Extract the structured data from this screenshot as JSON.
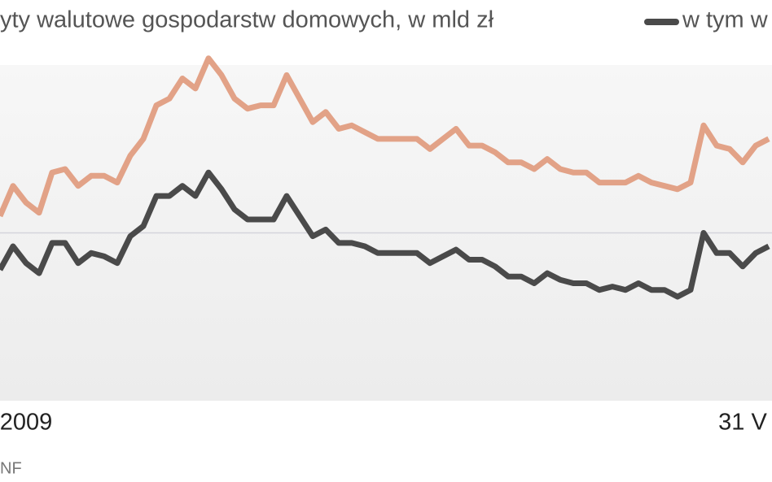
{
  "chart_data": {
    "type": "line",
    "categories": [
      null,
      null,
      "2009",
      null,
      null,
      null,
      null,
      null,
      null,
      null,
      null,
      null,
      null,
      null,
      null,
      null,
      null,
      null,
      null,
      null,
      null,
      null,
      null,
      null,
      null,
      null,
      null,
      null,
      null,
      null,
      null,
      null,
      null,
      null,
      null,
      null,
      null,
      null,
      null,
      null,
      null,
      null,
      null,
      null,
      null,
      null,
      null,
      null,
      null,
      null,
      null,
      null,
      null,
      null,
      null,
      null,
      null,
      "31 V",
      null,
      null
    ],
    "series": [
      {
        "name": "yty walutowe gospodarstw domowych, w mld zł",
        "color": "#e2a287",
        "values": [
          55,
          64,
          59,
          56,
          68,
          69,
          64,
          67,
          67,
          65,
          73,
          78,
          88,
          90,
          96,
          93,
          102,
          97,
          90,
          87,
          88,
          88,
          97,
          90,
          83,
          86,
          81,
          82,
          80,
          78,
          78,
          78,
          78,
          75,
          78,
          81,
          76,
          76,
          74,
          71,
          71,
          69,
          72,
          69,
          68,
          68,
          65,
          65,
          65,
          67,
          65,
          64,
          63,
          65,
          82,
          76,
          75,
          71,
          76,
          78
        ]
      },
      {
        "name": "w tym w",
        "color": "#4a4a4a",
        "values": [
          39,
          46,
          41,
          38,
          47,
          47,
          41,
          44,
          43,
          41,
          49,
          52,
          61,
          61,
          64,
          61,
          68,
          63,
          57,
          54,
          54,
          54,
          61,
          55,
          49,
          51,
          47,
          47,
          46,
          44,
          44,
          44,
          44,
          41,
          43,
          45,
          42,
          42,
          40,
          37,
          37,
          35,
          38,
          36,
          35,
          35,
          33,
          34,
          33,
          35,
          33,
          33,
          31,
          33,
          50,
          44,
          44,
          40,
          44,
          46
        ]
      }
    ],
    "ylim": [
      0,
      100
    ],
    "yticks": [
      50
    ],
    "grid": true,
    "source": "NF"
  }
}
